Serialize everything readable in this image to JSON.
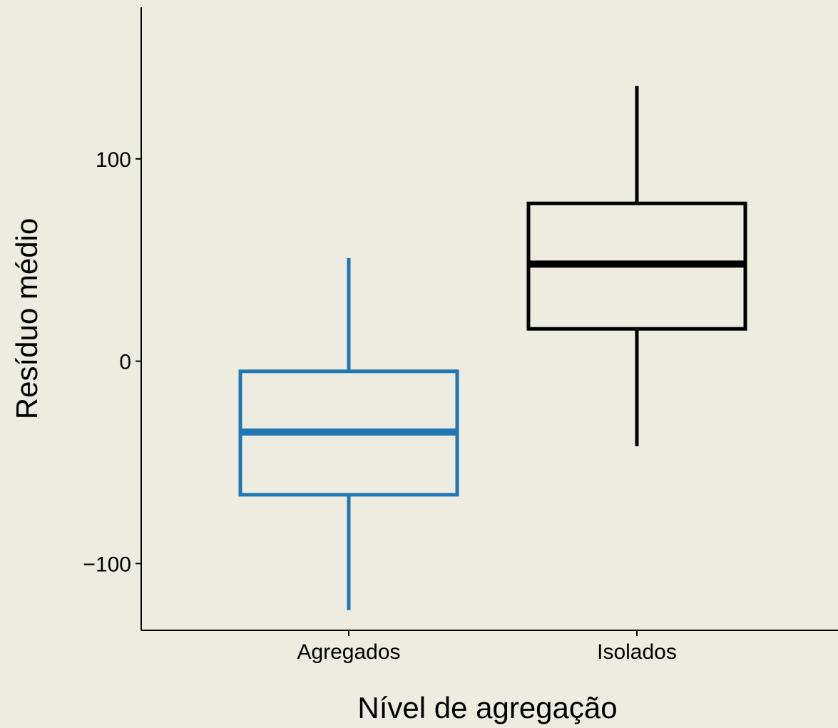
{
  "chart_data": {
    "type": "boxplot",
    "title": "",
    "xlabel": "Nível de agregação",
    "ylabel": "Resíduo médio",
    "ylim": [
      -133,
      175
    ],
    "yticks": [
      -100,
      0,
      100
    ],
    "ytick_labels": [
      "−100",
      "0",
      "100"
    ],
    "grid": false,
    "legend": "none",
    "categories": [
      "Agregados",
      "Isolados"
    ],
    "boxes": [
      {
        "category": "Agregados",
        "whisker_low": -123,
        "q1": -66,
        "median": -35,
        "q3": -5,
        "whisker_high": 51,
        "color": "#1F78B4"
      },
      {
        "category": "Isolados",
        "whisker_low": -42,
        "q1": 16,
        "median": 48,
        "q3": 78,
        "whisker_high": 136,
        "color": "#000000"
      }
    ],
    "background_color": "#EEEBE0"
  }
}
